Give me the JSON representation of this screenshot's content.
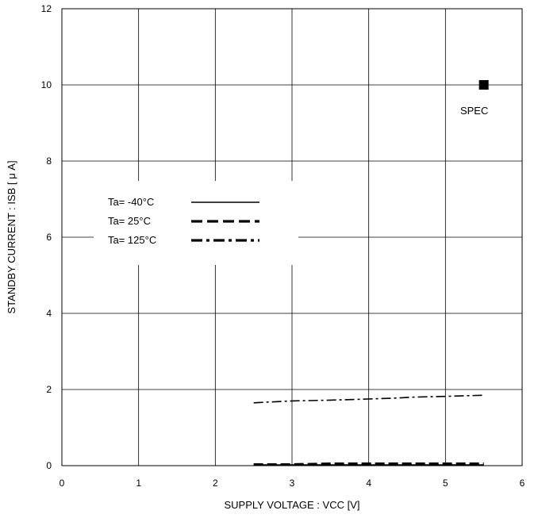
{
  "chart_data": {
    "type": "line",
    "title": "",
    "xlabel": "SUPPLY VOLTAGE : VCC [V]",
    "ylabel": "STANDBY CURRENT : ISB [ μ A]",
    "xlim": [
      0,
      6
    ],
    "ylim": [
      0,
      12
    ],
    "x_ticks": [
      "0",
      "1",
      "2",
      "3",
      "4",
      "5",
      "6"
    ],
    "y_ticks": [
      "0",
      "2",
      "4",
      "6",
      "8",
      "10",
      "12"
    ],
    "grid": true,
    "legend_placement": "center-left",
    "series": [
      {
        "name": "Ta= -40°C",
        "style": "solid",
        "color": "#000000",
        "x": [
          2.5,
          3.0,
          3.5,
          4.0,
          4.5,
          5.0,
          5.5
        ],
        "y": [
          0.02,
          0.02,
          0.02,
          0.02,
          0.02,
          0.02,
          0.02
        ]
      },
      {
        "name": "Ta=  25°C",
        "style": "dashed",
        "color": "#000000",
        "x": [
          2.5,
          3.0,
          3.5,
          4.0,
          4.5,
          5.0,
          5.5
        ],
        "y": [
          0.03,
          0.03,
          0.05,
          0.05,
          0.05,
          0.05,
          0.05
        ]
      },
      {
        "name": "Ta= 125°C",
        "style": "dashdot",
        "color": "#000000",
        "x": [
          2.5,
          3.0,
          3.5,
          4.0,
          4.3,
          4.6,
          5.0,
          5.5
        ],
        "y": [
          1.65,
          1.7,
          1.72,
          1.75,
          1.77,
          1.8,
          1.82,
          1.85
        ]
      }
    ],
    "annotations": [
      {
        "label": "SPEC",
        "x": 5.5,
        "y": 10,
        "marker": "square"
      }
    ]
  }
}
